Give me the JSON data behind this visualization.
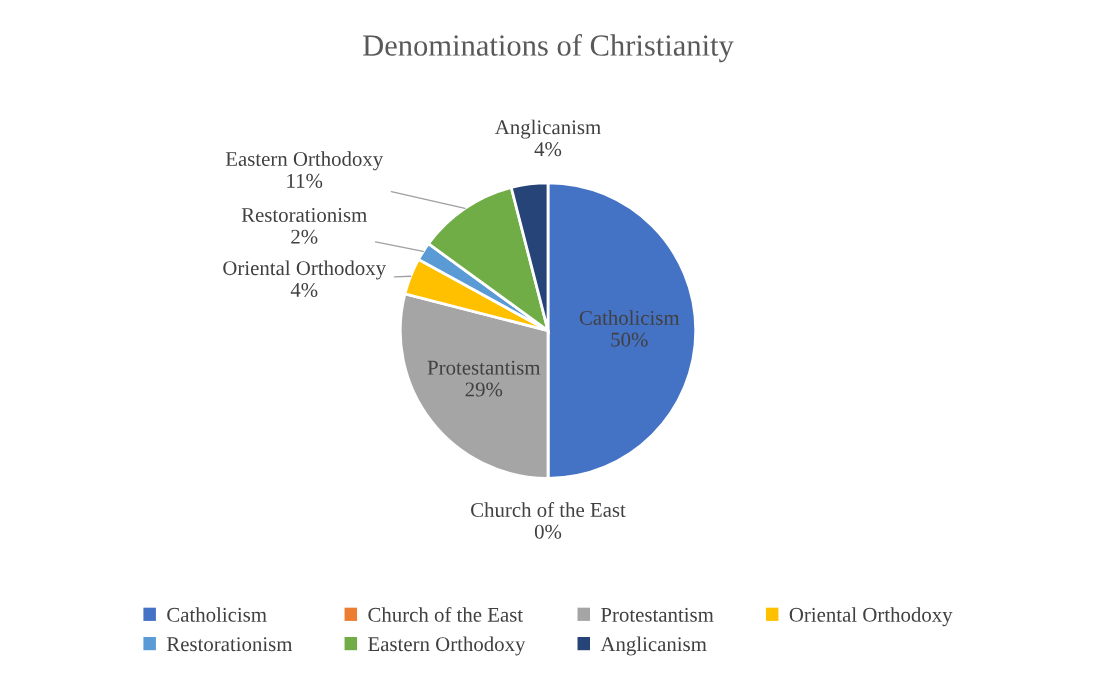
{
  "chart_data": {
    "type": "pie",
    "title": "Denominations of Christianity",
    "categories": [
      "Catholicism",
      "Church of the East",
      "Protestantism",
      "Oriental Orthodoxy",
      "Restorationism",
      "Eastern Orthodoxy",
      "Anglicanism"
    ],
    "values": [
      50,
      0,
      29,
      4,
      2,
      11,
      4
    ],
    "value_labels": [
      "50%",
      "0%",
      "29%",
      "4%",
      "2%",
      "11%",
      "4%"
    ],
    "colors": [
      "#4472c4",
      "#ed7d31",
      "#a5a5a5",
      "#ffc000",
      "#5b9bd5",
      "#70ad47",
      "#264478"
    ],
    "legend": "bottom"
  }
}
